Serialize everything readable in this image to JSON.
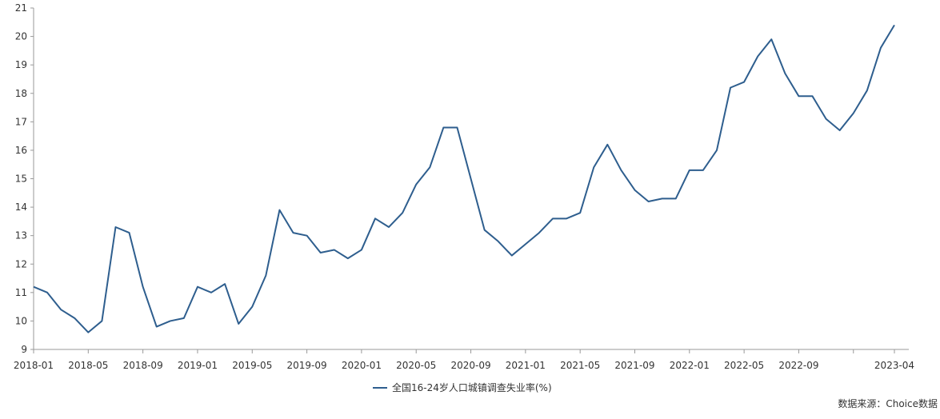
{
  "chart_data": {
    "type": "line",
    "title": "",
    "xlabel": "",
    "ylabel": "",
    "ylim": [
      9,
      21
    ],
    "y_ticks": [
      9,
      10,
      11,
      12,
      13,
      14,
      15,
      16,
      17,
      18,
      19,
      20,
      21
    ],
    "x_tick_labels": [
      "2018-01",
      "2018-05",
      "2018-09",
      "2019-01",
      "2019-05",
      "2019-09",
      "2020-01",
      "2020-05",
      "2020-09",
      "2021-01",
      "2021-05",
      "2021-09",
      "2022-01",
      "2022-05",
      "2022-09",
      "",
      "2023-04"
    ],
    "grid": false,
    "legend_position": "bottom",
    "series": [
      {
        "name": "全国16-24岁人口城镇调查失业率(%)",
        "color": "#2e5e8e",
        "x": [
          "2018-01",
          "2018-02",
          "2018-03",
          "2018-04",
          "2018-05",
          "2018-06",
          "2018-07",
          "2018-08",
          "2018-09",
          "2018-10",
          "2018-11",
          "2018-12",
          "2019-01",
          "2019-02",
          "2019-03",
          "2019-04",
          "2019-05",
          "2019-06",
          "2019-07",
          "2019-08",
          "2019-09",
          "2019-10",
          "2019-11",
          "2019-12",
          "2020-01",
          "2020-02",
          "2020-03",
          "2020-04",
          "2020-05",
          "2020-06",
          "2020-07",
          "2020-08",
          "2020-09",
          "2020-10",
          "2020-11",
          "2020-12",
          "2021-01",
          "2021-02",
          "2021-03",
          "2021-04",
          "2021-05",
          "2021-06",
          "2021-07",
          "2021-08",
          "2021-09",
          "2021-10",
          "2021-11",
          "2021-12",
          "2022-01",
          "2022-02",
          "2022-03",
          "2022-04",
          "2022-05",
          "2022-06",
          "2022-07",
          "2022-08",
          "2022-09",
          "2022-10",
          "2022-11",
          "2022-12",
          "2023-01",
          "2023-02",
          "2023-03",
          "2023-04"
        ],
        "values": [
          11.2,
          11.0,
          10.4,
          10.1,
          9.6,
          10.0,
          13.3,
          13.1,
          11.2,
          9.8,
          10.0,
          10.1,
          11.2,
          11.0,
          11.3,
          9.9,
          10.5,
          11.6,
          13.9,
          13.1,
          13.0,
          12.4,
          12.5,
          12.2,
          12.5,
          13.6,
          13.3,
          13.8,
          14.8,
          15.4,
          16.8,
          16.8,
          15.0,
          13.2,
          12.8,
          12.3,
          12.7,
          13.1,
          13.6,
          13.6,
          13.8,
          15.4,
          16.2,
          15.3,
          14.6,
          14.2,
          14.3,
          14.3,
          15.3,
          15.3,
          16.0,
          18.2,
          18.4,
          19.3,
          19.9,
          18.7,
          17.9,
          17.9,
          17.1,
          16.7,
          17.3,
          18.1,
          19.6,
          20.4
        ]
      }
    ],
    "source": "数据来源：Choice数据"
  }
}
